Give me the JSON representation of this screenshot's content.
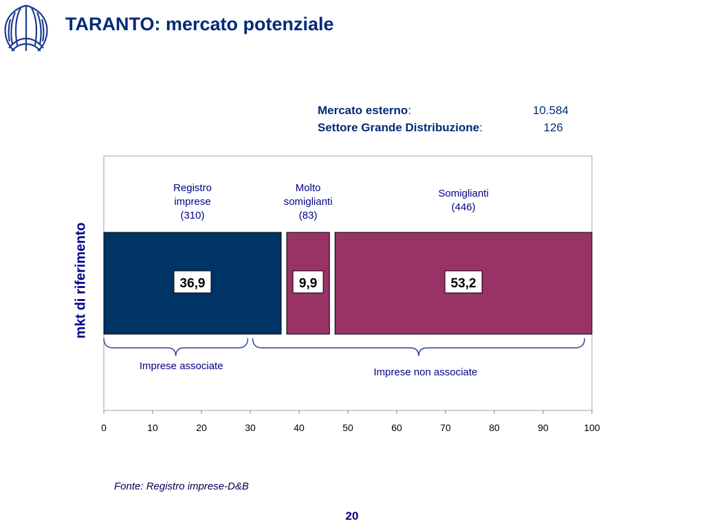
{
  "header": {
    "title": "TARANTO: mercato potenziale"
  },
  "summary": [
    {
      "label": "Mercato esterno",
      "suffix": ":",
      "value": "10.584"
    },
    {
      "label": "Settore Grande Distribuzione",
      "suffix": ":",
      "value": "126"
    }
  ],
  "chart_data": {
    "type": "bar",
    "orientation": "horizontal-stacked",
    "ylabel": "mkt di riferimento",
    "xlabel": "",
    "xlim": [
      0,
      100
    ],
    "xticks": [
      "0",
      "10",
      "20",
      "30",
      "40",
      "50",
      "60",
      "70",
      "80",
      "90",
      "100"
    ],
    "grid": false,
    "segments": [
      {
        "value": 36.9,
        "label": "36,9",
        "header": [
          "Registro",
          "imprese",
          "(310)"
        ],
        "color": "#003366"
      },
      {
        "value": 9.9,
        "label": "9,9",
        "header": [
          "Molto",
          "somiglianti",
          "(83)"
        ],
        "color": "#993366"
      },
      {
        "value": 53.2,
        "label": "53,2",
        "header": [
          "Somiglianti",
          "(446)"
        ],
        "color": "#993366"
      }
    ],
    "brackets": [
      {
        "label": "Imprese associate",
        "from": 0,
        "to": 29.5
      },
      {
        "label": "Imprese non associate",
        "from": 30.5,
        "to": 98.5
      }
    ]
  },
  "footer": {
    "source": "Fonte: Registro imprese-D&B",
    "page": "20"
  }
}
